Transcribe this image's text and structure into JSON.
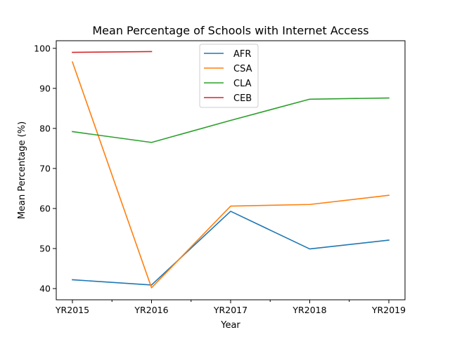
{
  "chart_data": {
    "type": "line",
    "title": "Mean Percentage of Schools with Internet Access",
    "xlabel": "Year",
    "ylabel": "Mean Percentage (%)",
    "categories": [
      "YR2015",
      "YR2016",
      "YR2017",
      "YR2018",
      "YR2019"
    ],
    "ylim": [
      37.2,
      101.9
    ],
    "yticks": [
      40,
      50,
      60,
      70,
      80,
      90,
      100
    ],
    "grid": false,
    "legend_position": "top-center",
    "series": [
      {
        "name": "AFR",
        "color": "#1f77b4",
        "values": [
          42.2,
          40.9,
          59.3,
          49.9,
          52.1
        ]
      },
      {
        "name": "CSA",
        "color": "#ff7f0e",
        "values": [
          96.6,
          40.2,
          60.6,
          61.0,
          63.3
        ]
      },
      {
        "name": "CLA",
        "color": "#2ca02c",
        "values": [
          79.2,
          76.5,
          82.0,
          87.3,
          87.6
        ]
      },
      {
        "name": "CEB",
        "color": "#d62728",
        "values": [
          99.0,
          99.2,
          null,
          null,
          null
        ]
      }
    ]
  }
}
